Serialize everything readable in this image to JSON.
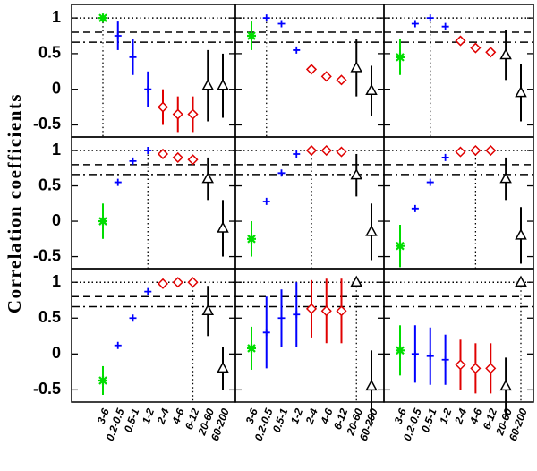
{
  "chart_data": {
    "type": "errorbar",
    "ylabel": "Correlation coefficients",
    "categories": [
      "3-6",
      "0.2-0.5",
      "0.5-1",
      "1-2",
      "2-4",
      "4-6",
      "6-12",
      "20-60",
      "60-200"
    ],
    "colors": [
      "#00dd00",
      "#0000ff",
      "#0000ff",
      "#0000ff",
      "#e00000",
      "#e00000",
      "#e00000",
      "#000000",
      "#000000"
    ],
    "markers": [
      "star",
      "plus",
      "plus",
      "plus",
      "diamond",
      "diamond",
      "diamond",
      "triangle",
      "triangle"
    ],
    "ylim": [
      -0.67,
      1.19
    ],
    "yticks": [
      -0.5,
      0,
      0.5,
      1
    ],
    "hlines": [
      {
        "value": 1,
        "style": "dotted"
      },
      {
        "value": 0.8,
        "style": "dashed"
      },
      {
        "value": 0.66,
        "style": "dashdot"
      }
    ],
    "panels": [
      {
        "highlight": "3-6",
        "values": [
          1.0,
          0.75,
          0.45,
          0.0,
          -0.25,
          -0.35,
          -0.35,
          0.05,
          0.05
        ],
        "errors": [
          0,
          0.2,
          0.25,
          0.25,
          0.25,
          0.25,
          0.25,
          0.5,
          0.45
        ]
      },
      {
        "highlight": "0.2-0.5",
        "values": [
          0.75,
          1.0,
          0.92,
          0.55,
          0.28,
          0.18,
          0.13,
          0.3,
          -0.02
        ],
        "errors": [
          0.2,
          0,
          0,
          0,
          0,
          0,
          0,
          0.4,
          0.35
        ]
      },
      {
        "highlight": "0.5-1",
        "values": [
          0.45,
          0.92,
          1.0,
          0.88,
          0.68,
          0.58,
          0.52,
          0.48,
          -0.05
        ],
        "errors": [
          0.25,
          0,
          0,
          0,
          0,
          0,
          0,
          0.35,
          0.4
        ]
      },
      {
        "highlight": "1-2",
        "values": [
          0.0,
          0.55,
          0.85,
          1.0,
          0.95,
          0.9,
          0.87,
          0.6,
          -0.1
        ],
        "errors": [
          0.25,
          0,
          0,
          0,
          0,
          0,
          0,
          0.3,
          0.4
        ]
      },
      {
        "highlight": "2-4",
        "values": [
          -0.25,
          0.28,
          0.68,
          0.95,
          1.0,
          1.0,
          0.98,
          0.65,
          -0.15
        ],
        "errors": [
          0.25,
          0,
          0,
          0,
          0,
          0,
          0,
          0.3,
          0.4
        ]
      },
      {
        "highlight": "4-6",
        "values": [
          -0.35,
          0.18,
          0.55,
          0.9,
          0.98,
          1.0,
          1.0,
          0.6,
          -0.2
        ],
        "errors": [
          0.3,
          0,
          0,
          0,
          0,
          0,
          0,
          0.3,
          0.4
        ]
      },
      {
        "highlight": "6-12",
        "values": [
          -0.37,
          0.12,
          0.5,
          0.87,
          0.98,
          1.0,
          1.0,
          0.6,
          -0.2
        ],
        "errors": [
          0.2,
          0,
          0,
          0,
          0,
          0,
          0,
          0.35,
          0.3
        ]
      },
      {
        "highlight": "20-60",
        "values": [
          0.08,
          0.3,
          0.5,
          0.55,
          0.63,
          0.6,
          0.6,
          1.0,
          -0.45
        ],
        "errors": [
          0.3,
          0.5,
          0.4,
          0.45,
          0.4,
          0.45,
          0.45,
          0,
          0.5
        ]
      },
      {
        "highlight": "60-200",
        "values": [
          0.05,
          0.0,
          -0.03,
          -0.08,
          -0.15,
          -0.2,
          -0.2,
          -0.45,
          1.0
        ],
        "errors": [
          0.35,
          0.4,
          0.4,
          0.35,
          0.35,
          0.35,
          0.35,
          0.4,
          0
        ]
      }
    ]
  }
}
